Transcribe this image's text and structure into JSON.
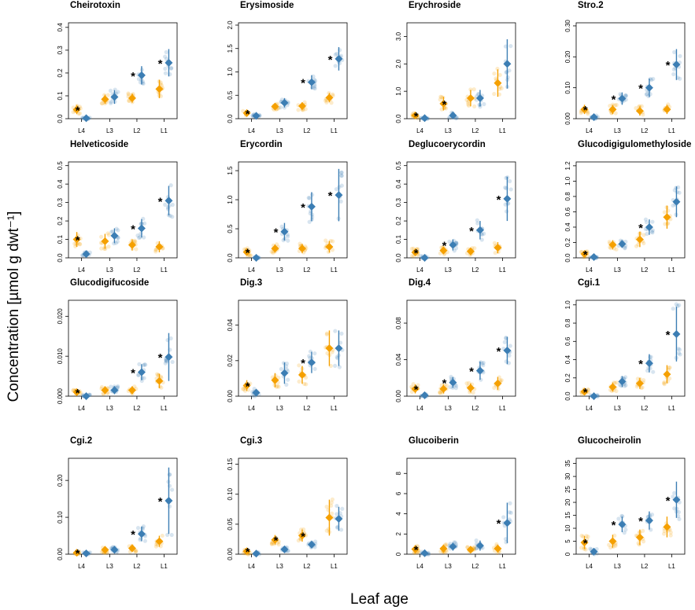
{
  "figure": {
    "ylabel": "Concentration [µmol g dwt⁻¹]",
    "xlabel": "Leaf age",
    "categories": [
      "L4",
      "L3",
      "L2",
      "L1"
    ],
    "colors": {
      "series_a": "#f5a000",
      "series_b": "#3c7eb4"
    }
  },
  "chart_data": [
    {
      "type": "scatter",
      "title": "Cheirotoxin",
      "ylim": [
        0,
        0.42
      ],
      "yticks": [
        "0.0",
        "0.1",
        "0.2",
        "0.3",
        "0.4"
      ],
      "ytickvals": [
        0,
        0.1,
        0.2,
        0.3,
        0.4
      ],
      "categories": [
        "L4",
        "L3",
        "L2",
        "L1"
      ],
      "series": [
        {
          "values": [
            0.04,
            0.085,
            0.09,
            0.13
          ],
          "err": [
            0.02,
            0.02,
            0.02,
            0.04
          ]
        },
        {
          "values": [
            0.002,
            0.095,
            0.19,
            0.245
          ],
          "err": [
            0.003,
            0.03,
            0.04,
            0.06
          ]
        }
      ],
      "significant": [
        1,
        0,
        1,
        1
      ]
    },
    {
      "type": "scatter",
      "title": "Erysimoside",
      "ylim": [
        0,
        2.05
      ],
      "yticks": [
        "0.0",
        "0.5",
        "1.0",
        "1.5",
        "2.0"
      ],
      "ytickvals": [
        0,
        0.5,
        1.0,
        1.5,
        2.0
      ],
      "categories": [
        "L4",
        "L3",
        "L2",
        "L1"
      ],
      "series": [
        {
          "values": [
            0.12,
            0.26,
            0.27,
            0.45
          ],
          "err": [
            0.05,
            0.06,
            0.08,
            0.1
          ]
        },
        {
          "values": [
            0.06,
            0.34,
            0.78,
            1.28
          ],
          "err": [
            0.03,
            0.1,
            0.15,
            0.25
          ]
        }
      ],
      "significant": [
        1,
        0,
        1,
        1
      ]
    },
    {
      "type": "scatter",
      "title": "Erychroside",
      "ylim": [
        0,
        3.5
      ],
      "yticks": [
        "0.0",
        "1.0",
        "2.0",
        "3.0"
      ],
      "ytickvals": [
        0,
        1,
        2,
        3
      ],
      "categories": [
        "L4",
        "L3",
        "L2",
        "L1"
      ],
      "series": [
        {
          "values": [
            0.12,
            0.55,
            0.75,
            1.3
          ],
          "err": [
            0.1,
            0.25,
            0.3,
            0.5
          ]
        },
        {
          "values": [
            0.02,
            0.12,
            0.75,
            2.0
          ],
          "err": [
            0.03,
            0.1,
            0.3,
            0.9
          ]
        }
      ],
      "significant": [
        1,
        1,
        0,
        0
      ]
    },
    {
      "type": "scatter",
      "title": "Stro.2",
      "ylim": [
        0,
        0.31
      ],
      "yticks": [
        "0.00",
        "0.10",
        "0.20",
        "0.30"
      ],
      "ytickvals": [
        0,
        0.1,
        0.2,
        0.3
      ],
      "categories": [
        "L4",
        "L3",
        "L2",
        "L1"
      ],
      "series": [
        {
          "values": [
            0.03,
            0.03,
            0.025,
            0.03
          ],
          "err": [
            0.015,
            0.015,
            0.015,
            0.015
          ]
        },
        {
          "values": [
            0.005,
            0.065,
            0.1,
            0.175
          ],
          "err": [
            0.005,
            0.02,
            0.03,
            0.05
          ]
        }
      ],
      "significant": [
        1,
        1,
        1,
        1
      ]
    },
    {
      "type": "scatter",
      "title": "Helveticoside",
      "ylim": [
        0,
        0.52
      ],
      "yticks": [
        "0.0",
        "0.1",
        "0.2",
        "0.3",
        "0.4",
        "0.5"
      ],
      "ytickvals": [
        0,
        0.1,
        0.2,
        0.3,
        0.4,
        0.5
      ],
      "categories": [
        "L4",
        "L3",
        "L2",
        "L1"
      ],
      "series": [
        {
          "values": [
            0.1,
            0.09,
            0.07,
            0.06
          ],
          "err": [
            0.04,
            0.04,
            0.03,
            0.03
          ]
        },
        {
          "values": [
            0.02,
            0.12,
            0.16,
            0.31
          ],
          "err": [
            0.01,
            0.04,
            0.05,
            0.08
          ]
        }
      ],
      "significant": [
        1,
        0,
        1,
        1
      ]
    },
    {
      "type": "scatter",
      "title": "Erycordin",
      "ylim": [
        0,
        1.65
      ],
      "yticks": [
        "0.0",
        "0.5",
        "1.0",
        "1.5"
      ],
      "ytickvals": [
        0,
        0.5,
        1.0,
        1.5
      ],
      "categories": [
        "L4",
        "L3",
        "L2",
        "L1"
      ],
      "series": [
        {
          "values": [
            0.1,
            0.16,
            0.16,
            0.19
          ],
          "err": [
            0.06,
            0.07,
            0.08,
            0.1
          ]
        },
        {
          "values": [
            0.0,
            0.45,
            0.88,
            1.08
          ],
          "err": [
            0.02,
            0.15,
            0.25,
            0.45
          ]
        }
      ],
      "significant": [
        1,
        1,
        1,
        1
      ]
    },
    {
      "type": "scatter",
      "title": "Deglucoerycordin",
      "ylim": [
        0,
        0.52
      ],
      "yticks": [
        "0.0",
        "0.1",
        "0.2",
        "0.3",
        "0.4",
        "0.5"
      ],
      "ytickvals": [
        0,
        0.1,
        0.2,
        0.3,
        0.4,
        0.5
      ],
      "categories": [
        "L4",
        "L3",
        "L2",
        "L1"
      ],
      "series": [
        {
          "values": [
            0.03,
            0.04,
            0.035,
            0.055
          ],
          "err": [
            0.02,
            0.02,
            0.02,
            0.03
          ]
        },
        {
          "values": [
            0.0,
            0.07,
            0.15,
            0.32
          ],
          "err": [
            0.01,
            0.03,
            0.05,
            0.12
          ]
        }
      ],
      "significant": [
        1,
        1,
        1,
        1
      ]
    },
    {
      "type": "scatter",
      "title": "Glucodigigulomethyloside",
      "ylim": [
        0,
        1.25
      ],
      "yticks": [
        "0.0",
        "0.2",
        "0.4",
        "0.6",
        "0.8",
        "1.0",
        "1.2"
      ],
      "ytickvals": [
        0,
        0.2,
        0.4,
        0.6,
        0.8,
        1.0,
        1.2
      ],
      "categories": [
        "L4",
        "L3",
        "L2",
        "L1"
      ],
      "series": [
        {
          "values": [
            0.05,
            0.17,
            0.24,
            0.53
          ],
          "err": [
            0.04,
            0.06,
            0.1,
            0.15
          ]
        },
        {
          "values": [
            0.01,
            0.18,
            0.4,
            0.73
          ],
          "err": [
            0.02,
            0.05,
            0.1,
            0.2
          ]
        }
      ],
      "significant": [
        1,
        0,
        1,
        0
      ]
    },
    {
      "type": "scatter",
      "title": "Glucodigifucoside",
      "ylim": [
        0,
        0.024
      ],
      "yticks": [
        "0.000",
        "0.010",
        "0.020"
      ],
      "ytickvals": [
        0,
        0.01,
        0.02
      ],
      "categories": [
        "L4",
        "L3",
        "L2",
        "L1"
      ],
      "series": [
        {
          "values": [
            0.001,
            0.0015,
            0.0015,
            0.0038
          ],
          "err": [
            0.0008,
            0.001,
            0.001,
            0.0018
          ]
        },
        {
          "values": [
            0.0,
            0.0015,
            0.006,
            0.0098
          ],
          "err": [
            0.0005,
            0.001,
            0.002,
            0.006
          ]
        }
      ],
      "significant": [
        1,
        0,
        1,
        1
      ]
    },
    {
      "type": "scatter",
      "title": "Dig.3",
      "ylim": [
        0,
        0.054
      ],
      "yticks": [
        "0.00",
        "0.02",
        "0.04"
      ],
      "ytickvals": [
        0,
        0.02,
        0.04
      ],
      "categories": [
        "L4",
        "L3",
        "L2",
        "L1"
      ],
      "series": [
        {
          "values": [
            0.006,
            0.009,
            0.012,
            0.027
          ],
          "err": [
            0.003,
            0.004,
            0.005,
            0.01
          ]
        },
        {
          "values": [
            0.002,
            0.013,
            0.019,
            0.027
          ],
          "err": [
            0.002,
            0.006,
            0.006,
            0.01
          ]
        }
      ],
      "significant": [
        1,
        0,
        1,
        0
      ]
    },
    {
      "type": "scatter",
      "title": "Dig.4",
      "ylim": [
        0,
        0.105
      ],
      "yticks": [
        "0.00",
        "0.04",
        "0.08"
      ],
      "ytickvals": [
        0,
        0.04,
        0.08
      ],
      "categories": [
        "L4",
        "L3",
        "L2",
        "L1"
      ],
      "series": [
        {
          "values": [
            0.008,
            0.008,
            0.009,
            0.014
          ],
          "err": [
            0.005,
            0.005,
            0.005,
            0.007
          ]
        },
        {
          "values": [
            0.001,
            0.015,
            0.028,
            0.05
          ],
          "err": [
            0.002,
            0.006,
            0.01,
            0.015
          ]
        }
      ],
      "significant": [
        1,
        1,
        1,
        1
      ]
    },
    {
      "type": "scatter",
      "title": "Cgi.1",
      "ylim": [
        0,
        1.05
      ],
      "yticks": [
        "0.0",
        "0.2",
        "0.4",
        "0.6",
        "0.8",
        "1.0"
      ],
      "ytickvals": [
        0,
        0.2,
        0.4,
        0.6,
        0.8,
        1.0
      ],
      "categories": [
        "L4",
        "L3",
        "L2",
        "L1"
      ],
      "series": [
        {
          "values": [
            0.05,
            0.1,
            0.14,
            0.24
          ],
          "err": [
            0.04,
            0.05,
            0.06,
            0.1
          ]
        },
        {
          "values": [
            0.0,
            0.16,
            0.36,
            0.68
          ],
          "err": [
            0.01,
            0.06,
            0.1,
            0.3
          ]
        }
      ],
      "significant": [
        1,
        0,
        1,
        1
      ]
    },
    {
      "type": "scatter",
      "title": "Cgi.2",
      "ylim": [
        0,
        0.26
      ],
      "yticks": [
        "0.00",
        "0.10",
        "0.20"
      ],
      "ytickvals": [
        0,
        0.1,
        0.2
      ],
      "categories": [
        "L4",
        "L3",
        "L2",
        "L1"
      ],
      "series": [
        {
          "values": [
            0.004,
            0.012,
            0.016,
            0.035
          ],
          "err": [
            0.004,
            0.008,
            0.01,
            0.015
          ]
        },
        {
          "values": [
            0.002,
            0.012,
            0.055,
            0.145
          ],
          "err": [
            0.003,
            0.01,
            0.02,
            0.09
          ]
        }
      ],
      "significant": [
        1,
        0,
        1,
        1
      ]
    },
    {
      "type": "scatter",
      "title": "Cgi.3",
      "ylim": [
        0,
        0.16
      ],
      "yticks": [
        "0.00",
        "0.05",
        "0.10",
        "0.15"
      ],
      "ytickvals": [
        0,
        0.05,
        0.1,
        0.15
      ],
      "categories": [
        "L4",
        "L3",
        "L2",
        "L1"
      ],
      "series": [
        {
          "values": [
            0.005,
            0.024,
            0.031,
            0.061
          ],
          "err": [
            0.005,
            0.008,
            0.01,
            0.03
          ]
        },
        {
          "values": [
            0.001,
            0.008,
            0.016,
            0.059
          ],
          "err": [
            0.002,
            0.003,
            0.005,
            0.02
          ]
        }
      ],
      "significant": [
        1,
        1,
        1,
        0
      ]
    },
    {
      "type": "scatter",
      "title": "Glucoiberin",
      "ylim": [
        0,
        9.5
      ],
      "yticks": [
        "0",
        "2",
        "4",
        "6",
        "8"
      ],
      "ytickvals": [
        0,
        2,
        4,
        6,
        8
      ],
      "categories": [
        "L4",
        "L3",
        "L2",
        "L1"
      ],
      "series": [
        {
          "values": [
            0.5,
            0.55,
            0.45,
            0.55
          ],
          "err": [
            0.4,
            0.4,
            0.3,
            0.4
          ]
        },
        {
          "values": [
            0.1,
            0.75,
            0.85,
            3.1
          ],
          "err": [
            0.2,
            0.4,
            0.5,
            2.0
          ]
        }
      ],
      "significant": [
        1,
        0,
        0,
        1
      ]
    },
    {
      "type": "scatter",
      "title": "Glucocheirolin",
      "ylim": [
        0,
        37
      ],
      "yticks": [
        "0",
        "5",
        "10",
        "15",
        "20",
        "25",
        "30",
        "35"
      ],
      "ytickvals": [
        0,
        5,
        10,
        15,
        20,
        25,
        30,
        35
      ],
      "categories": [
        "L4",
        "L3",
        "L2",
        "L1"
      ],
      "series": [
        {
          "values": [
            4.5,
            5.0,
            6.5,
            10.5
          ],
          "err": [
            2.5,
            2.5,
            3.0,
            4.0
          ]
        },
        {
          "values": [
            1.0,
            11.5,
            13.0,
            21.0
          ],
          "err": [
            1.0,
            3.0,
            3.5,
            7.0
          ]
        }
      ],
      "significant": [
        1,
        1,
        1,
        1
      ]
    }
  ]
}
